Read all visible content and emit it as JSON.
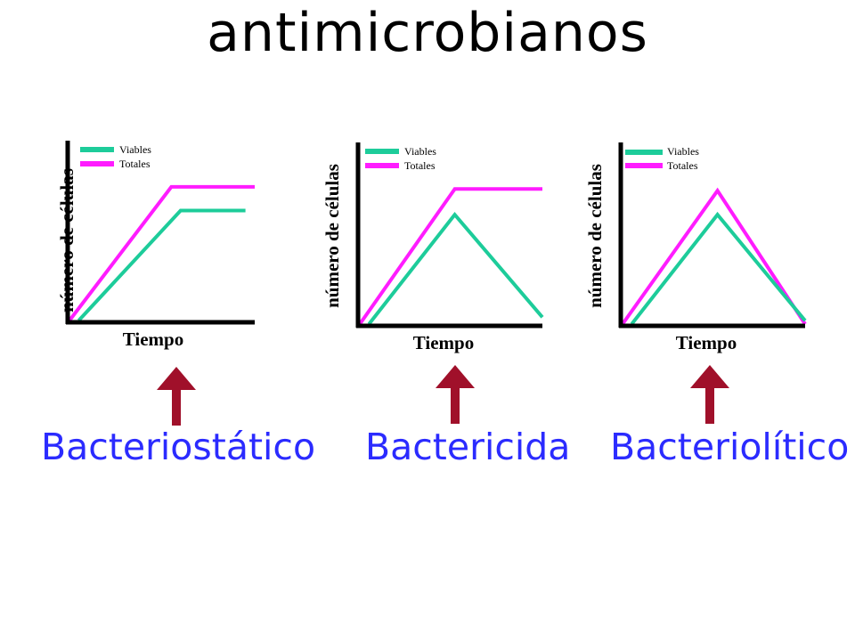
{
  "title": "antimicrobianos",
  "colors": {
    "viables": "#1dcc9a",
    "totales": "#ff1cff",
    "axis": "#000000",
    "arrow": "#a0102a",
    "type_label": "#2b2bff"
  },
  "chart_data": [
    {
      "type": "line",
      "title": "",
      "xlabel": "Tiempo",
      "ylabel": "número de células",
      "xlim": [
        0,
        10
      ],
      "ylim": [
        0,
        10
      ],
      "legend": "top-left",
      "grid": false,
      "series": [
        {
          "name": "Viables",
          "color": "#1dcc9a",
          "x": [
            0.5,
            6.0,
            9.5
          ],
          "y": [
            0.0,
            6.5,
            6.5
          ]
        },
        {
          "name": "Totales",
          "color": "#ff1cff",
          "x": [
            0.0,
            5.5,
            10.0
          ],
          "y": [
            0.0,
            7.9,
            7.9
          ]
        }
      ],
      "caption": "Bacteriostático"
    },
    {
      "type": "line",
      "title": "",
      "xlabel": "Tiempo",
      "ylabel": "número de células",
      "xlim": [
        0,
        10
      ],
      "ylim": [
        0,
        10
      ],
      "legend": "top-left",
      "grid": false,
      "series": [
        {
          "name": "Viables",
          "color": "#1dcc9a",
          "x": [
            0.5,
            5.2,
            10.0
          ],
          "y": [
            0.0,
            6.4,
            0.4
          ]
        },
        {
          "name": "Totales",
          "color": "#ff1cff",
          "x": [
            0.0,
            5.2,
            10.0
          ],
          "y": [
            0.0,
            7.9,
            7.9
          ]
        }
      ],
      "caption": "Bactericida"
    },
    {
      "type": "line",
      "title": "",
      "xlabel": "Tiempo",
      "ylabel": "número de células",
      "xlim": [
        0,
        10
      ],
      "ylim": [
        0,
        10
      ],
      "legend": "top-left",
      "grid": false,
      "series": [
        {
          "name": "Viables",
          "color": "#1dcc9a",
          "x": [
            0.5,
            5.2,
            10.0
          ],
          "y": [
            0.0,
            6.4,
            0.2
          ]
        },
        {
          "name": "Totales",
          "color": "#ff1cff",
          "x": [
            0.0,
            5.2,
            10.0
          ],
          "y": [
            0.0,
            7.8,
            0.0
          ]
        }
      ],
      "caption": "Bacteriolítico"
    }
  ]
}
